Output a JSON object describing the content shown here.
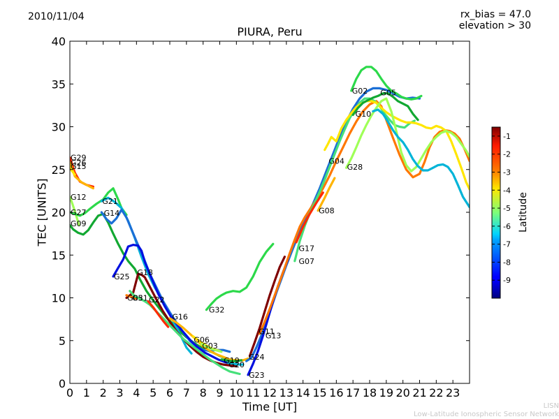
{
  "header": {
    "date": "2010/11/04",
    "rx_bias": "rx_bias = 47.0",
    "elevation": "elevation > 30"
  },
  "footer": {
    "line1": "LISN",
    "line2": "Low-Latitude Ionospheric Sensor Network"
  },
  "chart_data": {
    "type": "scatter",
    "title": "PIURA, Peru",
    "xlabel": "Time [UT]",
    "ylabel": "TEC [UNITS]",
    "xlim": [
      0,
      24
    ],
    "ylim": [
      0,
      40
    ],
    "xticks": [
      "0",
      "1",
      "2",
      "3",
      "4",
      "5",
      "6",
      "7",
      "8",
      "9",
      "10",
      "11",
      "12",
      "13",
      "14",
      "15",
      "16",
      "17",
      "18",
      "19",
      "20",
      "21",
      "22",
      "23"
    ],
    "yticks": [
      "0",
      "5",
      "10",
      "15",
      "20",
      "25",
      "30",
      "35",
      "40"
    ],
    "grid": false,
    "colorbar": {
      "label": "Latitude",
      "range": [
        -10,
        -0.5
      ],
      "ticks": [
        "-1",
        "-2",
        "-3",
        "-4",
        "-5",
        "-6",
        "-7",
        "-8",
        "-9"
      ],
      "colormap": "jet"
    },
    "series": [
      {
        "name": "G29",
        "x": [
          0.0,
          0.3,
          0.6,
          1.0,
          1.4
        ],
        "y": [
          26.4,
          24.6,
          23.6,
          23.2,
          23.0
        ]
      },
      {
        "name": "G26",
        "x": [
          0.0,
          0.3,
          0.7,
          1.1,
          1.4
        ],
        "y": [
          25.8,
          24.2,
          23.5,
          23.1,
          22.8
        ]
      },
      {
        "name": "G15",
        "x": [
          0.0,
          0.1,
          0.3
        ],
        "y": [
          25.4,
          24.9,
          24.4
        ]
      },
      {
        "name": "G12",
        "x": [
          0.0,
          0.15,
          0.35,
          0.55
        ],
        "y": [
          21.8,
          21.0,
          19.8,
          18.5
        ]
      },
      {
        "name": "G27",
        "x": [
          0.0,
          0.3,
          0.6,
          0.9,
          1.2,
          1.6,
          2.0,
          2.3,
          2.6,
          2.9,
          3.1,
          3.4
        ],
        "y": [
          20.0,
          19.8,
          19.6,
          19.9,
          20.4,
          21.0,
          21.5,
          22.3,
          22.8,
          21.5,
          20.5,
          19.7
        ]
      },
      {
        "name": "G09",
        "x": [
          0.0,
          0.2,
          0.5,
          0.8,
          1.1,
          1.4,
          1.7,
          2.0,
          2.3,
          2.6,
          2.9,
          3.2,
          3.5,
          3.9,
          4.2,
          4.6,
          5.0,
          5.4,
          5.8,
          6.2,
          6.6,
          7.0,
          7.4,
          7.8,
          8.2,
          8.6,
          9.0,
          9.3
        ],
        "y": [
          18.5,
          18.0,
          17.6,
          17.4,
          17.9,
          18.8,
          19.6,
          19.8,
          18.8,
          17.5,
          16.3,
          15.2,
          14.3,
          13.4,
          12.2,
          10.8,
          9.7,
          8.7,
          7.7,
          6.9,
          6.1,
          5.4,
          4.8,
          4.3,
          3.9,
          3.6,
          3.2,
          3.0
        ]
      },
      {
        "name": "G21",
        "x": [
          1.9,
          2.3,
          2.7,
          3.1,
          3.5,
          3.9,
          4.3,
          4.7,
          5.1,
          5.5,
          5.9,
          6.3,
          6.7,
          7.0,
          7.3
        ],
        "y": [
          21.3,
          21.7,
          21.2,
          20.5,
          19.0,
          17.0,
          14.8,
          12.8,
          11.2,
          9.9,
          8.5,
          6.9,
          5.4,
          4.2,
          3.5
        ]
      },
      {
        "name": "G14",
        "x": [
          1.9,
          2.2,
          2.5,
          2.8,
          3.1,
          3.4,
          3.7,
          4.0,
          4.4,
          4.8,
          5.2,
          5.6,
          6.0,
          6.4,
          6.8,
          7.2,
          7.6,
          8.0,
          8.4,
          8.8,
          9.2,
          9.6
        ],
        "y": [
          20.0,
          19.2,
          18.7,
          19.3,
          20.3,
          19.4,
          18.0,
          16.6,
          14.8,
          12.8,
          11.2,
          9.6,
          8.3,
          7.1,
          6.0,
          5.0,
          4.3,
          3.9,
          3.8,
          3.9,
          3.9,
          3.7
        ]
      },
      {
        "name": "G25",
        "x": [
          2.6,
          2.9,
          3.2,
          3.5,
          3.8,
          4.1,
          4.3,
          4.5,
          4.9,
          5.3,
          5.7,
          6.1,
          6.5,
          6.9,
          7.3,
          7.7,
          8.1,
          8.5,
          8.9,
          9.3,
          9.7,
          10.0
        ],
        "y": [
          12.5,
          13.5,
          14.5,
          16.0,
          16.2,
          16.1,
          15.5,
          14.2,
          12.3,
          10.5,
          9.0,
          7.7,
          6.7,
          5.8,
          4.9,
          4.2,
          3.6,
          3.2,
          2.8,
          2.5,
          2.3,
          2.2
        ]
      },
      {
        "name": "G18",
        "x": [
          3.4,
          3.8,
          4.1,
          4.3,
          4.5,
          4.8,
          5.2,
          5.6,
          6.0,
          6.4,
          6.8,
          7.2,
          7.6,
          8.0,
          8.4,
          8.8,
          9.2,
          9.6,
          10.0
        ],
        "y": [
          10.0,
          10.6,
          12.8,
          12.7,
          12.4,
          11.3,
          9.8,
          8.4,
          7.2,
          6.1,
          5.2,
          4.4,
          3.7,
          3.1,
          2.7,
          2.4,
          2.2,
          2.1,
          2.0
        ]
      },
      {
        "name": "G05",
        "x": [
          3.4,
          3.7,
          4.0
        ],
        "y": [
          10.3,
          10.1,
          9.9
        ]
      },
      {
        "name": "G31",
        "x": [
          3.6,
          3.9,
          4.2,
          4.5,
          4.8,
          5.2,
          5.6,
          6.0,
          6.4,
          6.8,
          7.2,
          7.6,
          8.0,
          8.4,
          8.8,
          9.2,
          9.6,
          10.0,
          10.2
        ],
        "y": [
          10.8,
          10.2,
          9.9,
          9.6,
          9.2,
          8.4,
          7.6,
          6.8,
          6.0,
          5.2,
          4.6,
          4.0,
          3.4,
          2.8,
          2.3,
          1.8,
          1.4,
          1.2,
          1.1
        ]
      },
      {
        "name": "G22",
        "x": [
          4.7,
          5.0,
          5.3,
          5.6,
          5.9
        ],
        "y": [
          9.6,
          8.9,
          8.1,
          7.3,
          6.6
        ]
      },
      {
        "name": "G16",
        "x": [
          6.0,
          6.4,
          6.8,
          7.2,
          7.6,
          8.0,
          8.4,
          8.8,
          9.2,
          9.6,
          10.0,
          10.4,
          10.7
        ],
        "y": [
          7.6,
          7.1,
          6.5,
          5.8,
          5.1,
          4.3,
          3.8,
          3.4,
          3.1,
          2.8,
          2.7,
          2.7,
          2.9
        ]
      },
      {
        "name": "G06",
        "x": [
          7.4,
          7.8,
          8.2,
          8.6,
          9.0
        ],
        "y": [
          5.5,
          4.9,
          4.4,
          4.0,
          3.8
        ]
      },
      {
        "name": "G03",
        "x": [
          7.9,
          8.3,
          8.7,
          9.1
        ],
        "y": [
          4.6,
          4.2,
          3.9,
          3.7
        ]
      },
      {
        "name": "G32",
        "x": [
          8.2,
          8.5,
          8.8,
          9.1,
          9.4,
          9.8,
          10.2,
          10.6,
          11.0,
          11.4,
          11.8,
          12.2
        ],
        "y": [
          8.6,
          9.3,
          9.9,
          10.3,
          10.6,
          10.8,
          10.7,
          11.2,
          12.5,
          14.2,
          15.4,
          16.3
        ]
      },
      {
        "name": "G19",
        "x": [
          9.1,
          9.4,
          9.7,
          10.0,
          10.3
        ],
        "y": [
          2.8,
          2.7,
          2.6,
          2.6,
          2.7
        ]
      },
      {
        "name": "G20",
        "x": [
          9.5,
          9.8,
          10.1,
          10.4
        ],
        "y": [
          2.4,
          2.3,
          2.2,
          2.2
        ]
      },
      {
        "name": "G24",
        "x": [
          10.6,
          10.9,
          11.2,
          11.5,
          11.8,
          12.1,
          12.4,
          12.7,
          13.0,
          13.4,
          13.8,
          14.2,
          14.6,
          15.0,
          15.4,
          15.8,
          16.2,
          16.6,
          17.0,
          17.4,
          17.8,
          18.2,
          18.6,
          19.0,
          19.4,
          19.8,
          20.2,
          20.6,
          21.0
        ],
        "y": [
          2.6,
          3.0,
          4.2,
          5.6,
          7.2,
          8.9,
          10.6,
          12.2,
          13.8,
          15.8,
          17.7,
          19.4,
          21.0,
          22.8,
          24.8,
          26.8,
          28.8,
          30.6,
          32.1,
          33.3,
          34.1,
          34.5,
          34.5,
          34.3,
          33.9,
          33.5,
          33.3,
          33.4,
          33.3
        ]
      },
      {
        "name": "G23",
        "x": [
          10.7,
          11.0,
          11.3,
          11.6,
          11.9,
          12.2,
          12.5,
          12.8,
          13.1
        ],
        "y": [
          1.0,
          2.3,
          3.8,
          5.6,
          7.6,
          9.6,
          11.4,
          13.0,
          14.5
        ]
      },
      {
        "name": "G11",
        "x": [
          10.8,
          11.1,
          11.4,
          11.7,
          12.0,
          12.3,
          12.6,
          12.9
        ],
        "y": [
          3.2,
          4.8,
          6.5,
          8.4,
          10.3,
          12.0,
          13.6,
          14.8
        ]
      },
      {
        "name": "G13",
        "x": [
          11.4,
          11.7,
          12.0,
          12.3,
          12.6,
          12.9,
          13.2,
          13.5,
          13.8,
          14.1,
          14.4,
          14.8,
          15.2,
          15.6,
          16.0,
          16.4,
          16.8,
          17.2,
          17.6,
          18.0,
          18.4,
          18.7,
          19.0,
          19.4,
          19.8,
          20.2,
          20.6,
          21.0,
          21.3,
          21.6,
          21.9,
          22.2,
          22.5,
          22.8,
          23.1,
          23.4,
          23.7,
          24.0
        ],
        "y": [
          5.8,
          7.2,
          8.7,
          10.3,
          11.9,
          13.5,
          15.2,
          16.8,
          18.3,
          19.4,
          20.3,
          21.5,
          22.8,
          24.3,
          26.0,
          27.6,
          29.2,
          30.6,
          31.8,
          32.6,
          33.0,
          32.4,
          30.8,
          28.7,
          26.7,
          25.0,
          24.1,
          24.5,
          25.9,
          27.6,
          28.8,
          29.4,
          29.6,
          29.5,
          29.2,
          28.6,
          27.4,
          26.0
        ]
      },
      {
        "name": "G07",
        "x": [
          13.5,
          13.8,
          14.1,
          14.4,
          14.7,
          15.0,
          15.3,
          15.6,
          15.9,
          16.2,
          16.5,
          16.8,
          17.1,
          17.4,
          17.7,
          18.0,
          18.3,
          18.6,
          18.9,
          19.2,
          19.5,
          19.8,
          20.1,
          20.4,
          20.7
        ],
        "y": [
          14.3,
          16.6,
          18.4,
          19.9,
          21.1,
          22.4,
          23.8,
          25.3,
          26.8,
          28.3,
          29.7,
          31.0,
          32.0,
          32.8,
          33.3,
          33.3,
          33.0,
          32.4,
          31.5,
          30.8,
          30.2,
          30.0,
          29.9,
          30.4,
          30.7
        ]
      },
      {
        "name": "G17",
        "x": [
          13.6,
          14.0,
          14.4,
          14.8,
          15.2
        ],
        "y": [
          16.5,
          18.3,
          19.8,
          21.1,
          22.3
        ]
      },
      {
        "name": "G08",
        "x": [
          14.9,
          15.3,
          15.6,
          15.9
        ],
        "y": [
          20.2,
          21.7,
          22.9,
          24.0
        ]
      },
      {
        "name": "G04",
        "x": [
          15.3,
          15.5,
          15.7,
          16.0,
          16.3,
          16.6,
          16.9,
          17.2,
          17.5,
          17.8,
          18.1,
          18.4,
          18.7,
          19.0,
          19.3,
          19.6,
          19.9,
          20.2,
          20.5,
          20.8,
          21.1,
          21.4,
          21.7,
          22.0,
          22.3,
          22.6,
          22.9,
          23.2,
          23.5,
          23.8,
          24.0
        ],
        "y": [
          27.3,
          28.0,
          28.8,
          28.3,
          29.8,
          30.8,
          31.6,
          32.3,
          32.7,
          33.0,
          33.0,
          32.8,
          32.2,
          31.7,
          31.3,
          31.0,
          30.7,
          30.5,
          30.5,
          30.4,
          30.2,
          29.9,
          29.8,
          30.1,
          29.9,
          29.5,
          28.3,
          26.8,
          25.2,
          23.5,
          22.7
        ]
      },
      {
        "name": "G28",
        "x": [
          16.6,
          16.9,
          17.2,
          17.5,
          17.8,
          18.1,
          18.4,
          18.7,
          19.0,
          19.3,
          19.6,
          19.9,
          20.2,
          20.5,
          20.8,
          21.1,
          21.4,
          21.7,
          22.0,
          22.3,
          22.6,
          22.9,
          23.2,
          23.5,
          23.8,
          24.0
        ],
        "y": [
          25.2,
          26.3,
          27.6,
          29.0,
          30.2,
          31.3,
          32.2,
          33.0,
          33.3,
          31.8,
          29.5,
          27.0,
          25.5,
          24.8,
          25.3,
          26.3,
          27.3,
          28.2,
          28.8,
          29.3,
          29.5,
          29.3,
          28.8,
          28.0,
          27.2,
          26.5
        ]
      },
      {
        "name": "G02",
        "x": [
          16.9,
          17.2,
          17.5,
          17.8,
          18.1,
          18.4,
          18.7,
          19.0,
          19.3,
          19.6,
          19.9,
          20.2,
          20.5,
          20.8,
          21.1
        ],
        "y": [
          34.2,
          35.6,
          36.6,
          37.0,
          37.0,
          36.5,
          35.6,
          34.8,
          34.2,
          33.9,
          33.5,
          33.3,
          33.2,
          33.3,
          33.6
        ]
      },
      {
        "name": "G10",
        "x": [
          17.0,
          17.3,
          17.6,
          17.9,
          18.2,
          18.5,
          18.8,
          19.1,
          19.4,
          19.7,
          20.0,
          20.3,
          20.6,
          20.9
        ],
        "y": [
          31.4,
          32.2,
          32.8,
          33.1,
          33.4,
          33.6,
          33.9,
          33.9,
          33.5,
          33.0,
          32.7,
          32.4,
          31.5,
          30.8
        ]
      },
      {
        "name": "G30",
        "x": [
          18.2,
          18.5,
          18.8,
          19.1,
          19.4,
          19.7,
          20.0,
          20.3,
          20.6,
          20.9,
          21.2,
          21.5,
          21.8,
          22.1,
          22.4,
          22.7,
          23.0,
          23.3,
          23.6,
          24.0
        ],
        "y": [
          31.8,
          32.0,
          31.5,
          30.6,
          29.6,
          28.8,
          28.2,
          27.3,
          26.2,
          25.4,
          24.9,
          24.9,
          25.2,
          25.5,
          25.6,
          25.3,
          24.5,
          23.2,
          21.8,
          20.6
        ]
      }
    ],
    "labels": [
      {
        "text": "G29",
        "x": 0.0,
        "y": 26.4
      },
      {
        "text": "G26",
        "x": 0.0,
        "y": 25.8
      },
      {
        "text": "G15",
        "x": 0.0,
        "y": 25.4
      },
      {
        "text": "G12",
        "x": 0.0,
        "y": 21.8
      },
      {
        "text": "G21",
        "x": 1.9,
        "y": 21.3
      },
      {
        "text": "G27",
        "x": 0.0,
        "y": 20.0
      },
      {
        "text": "G14",
        "x": 2.0,
        "y": 19.9
      },
      {
        "text": "G09",
        "x": 0.0,
        "y": 18.7
      },
      {
        "text": "G18",
        "x": 4.0,
        "y": 13.0
      },
      {
        "text": "G25",
        "x": 2.6,
        "y": 12.5
      },
      {
        "text": "G05",
        "x": 3.4,
        "y": 10.0
      },
      {
        "text": "G31",
        "x": 3.7,
        "y": 10.0
      },
      {
        "text": "G22",
        "x": 4.7,
        "y": 9.8
      },
      {
        "text": "G16",
        "x": 6.1,
        "y": 7.8
      },
      {
        "text": "G06",
        "x": 7.4,
        "y": 5.1
      },
      {
        "text": "G03",
        "x": 7.9,
        "y": 4.4
      },
      {
        "text": "G32",
        "x": 8.3,
        "y": 8.6
      },
      {
        "text": "G19",
        "x": 9.2,
        "y": 2.7
      },
      {
        "text": "G20",
        "x": 9.5,
        "y": 2.2
      },
      {
        "text": "G24",
        "x": 10.7,
        "y": 3.1
      },
      {
        "text": "G23",
        "x": 10.7,
        "y": 1.0
      },
      {
        "text": "G11",
        "x": 11.3,
        "y": 6.1
      },
      {
        "text": "G13",
        "x": 11.7,
        "y": 5.6
      },
      {
        "text": "G17",
        "x": 13.7,
        "y": 15.8
      },
      {
        "text": "G07",
        "x": 13.7,
        "y": 14.3
      },
      {
        "text": "G08",
        "x": 14.9,
        "y": 20.2
      },
      {
        "text": "G04",
        "x": 15.5,
        "y": 26.0
      },
      {
        "text": "G28",
        "x": 16.6,
        "y": 25.3
      },
      {
        "text": "G02",
        "x": 16.9,
        "y": 34.2
      },
      {
        "text": "G10",
        "x": 17.1,
        "y": 31.5
      },
      {
        "text": "G05",
        "x": 18.6,
        "y": 34.0
      }
    ]
  }
}
